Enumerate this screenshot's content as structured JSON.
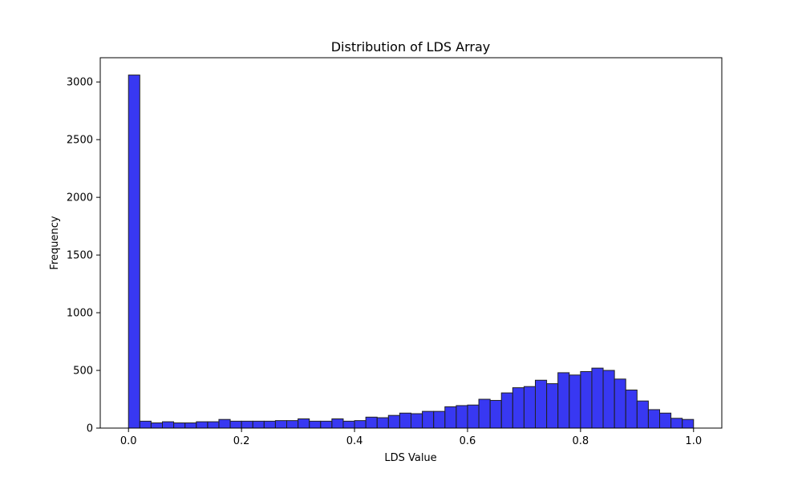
{
  "chart_data": {
    "type": "bar",
    "title": "Distribution of LDS Array",
    "xlabel": "LDS Value",
    "ylabel": "Frequency",
    "xlim": [
      -0.05,
      1.05
    ],
    "ylim": [
      0,
      3210
    ],
    "grid": false,
    "bar_color": "#0000ee",
    "bar_edge_color": "#222222",
    "bin_width": 0.02,
    "bins_start": [
      0.0,
      0.02,
      0.04,
      0.06,
      0.08,
      0.1,
      0.12,
      0.14,
      0.16,
      0.18,
      0.2,
      0.22,
      0.24,
      0.26,
      0.28,
      0.3,
      0.32,
      0.34,
      0.36,
      0.38,
      0.4,
      0.42,
      0.44,
      0.46,
      0.48,
      0.5,
      0.52,
      0.54,
      0.56,
      0.58,
      0.6,
      0.62,
      0.64,
      0.66,
      0.68,
      0.7,
      0.72,
      0.74,
      0.76,
      0.78,
      0.8,
      0.82,
      0.84,
      0.86,
      0.88,
      0.9,
      0.92,
      0.94,
      0.96,
      0.98
    ],
    "values": [
      3060,
      60,
      45,
      55,
      45,
      45,
      55,
      55,
      75,
      60,
      60,
      60,
      60,
      65,
      65,
      80,
      60,
      60,
      80,
      60,
      65,
      95,
      90,
      110,
      130,
      125,
      145,
      145,
      185,
      195,
      200,
      250,
      240,
      305,
      350,
      360,
      415,
      385,
      480,
      460,
      490,
      520,
      500,
      425,
      330,
      235,
      160,
      130,
      85,
      75
    ],
    "x_ticks": [
      {
        "value": 0.0,
        "label": "0.0"
      },
      {
        "value": 0.2,
        "label": "0.2"
      },
      {
        "value": 0.4,
        "label": "0.4"
      },
      {
        "value": 0.6,
        "label": "0.6"
      },
      {
        "value": 0.8,
        "label": "0.8"
      },
      {
        "value": 1.0,
        "label": "1.0"
      }
    ],
    "y_ticks": [
      {
        "value": 0,
        "label": "0"
      },
      {
        "value": 500,
        "label": "500"
      },
      {
        "value": 1000,
        "label": "1000"
      },
      {
        "value": 1500,
        "label": "1500"
      },
      {
        "value": 2000,
        "label": "2000"
      },
      {
        "value": 2500,
        "label": "2500"
      },
      {
        "value": 3000,
        "label": "3000"
      }
    ]
  }
}
